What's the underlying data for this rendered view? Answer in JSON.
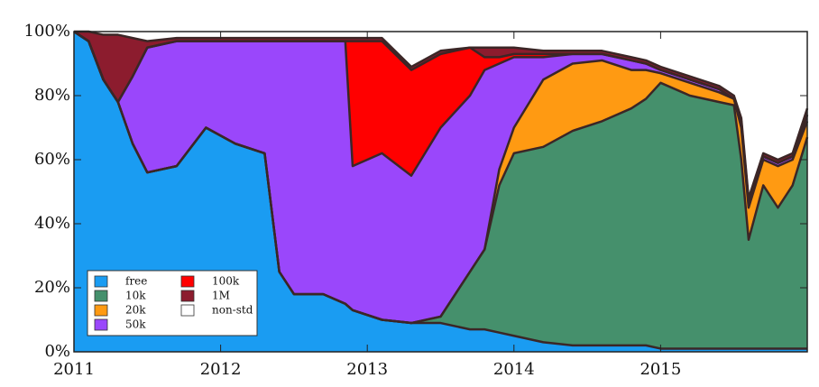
{
  "chart_data": {
    "type": "stacked_area",
    "x": [
      2011.0,
      2011.1,
      2011.2,
      2011.3,
      2011.4,
      2011.5,
      2011.7,
      2011.9,
      2012.1,
      2012.3,
      2012.4,
      2012.5,
      2012.7,
      2012.85,
      2012.9,
      2013.1,
      2013.3,
      2013.5,
      2013.7,
      2013.8,
      2013.9,
      2014.0,
      2014.2,
      2014.4,
      2014.6,
      2014.8,
      2014.9,
      2015.0,
      2015.2,
      2015.4,
      2015.5,
      2015.55,
      2015.6,
      2015.7,
      2015.8,
      2015.9,
      2016.0
    ],
    "series": [
      {
        "name": "free",
        "color": "#1a9cf2",
        "values": [
          100,
          97,
          85,
          78,
          65,
          56,
          58,
          70,
          65,
          62,
          25,
          18,
          18,
          15,
          13,
          10,
          9,
          9,
          7,
          7,
          6,
          5,
          3,
          2,
          2,
          2,
          2,
          1,
          1,
          1,
          1,
          1,
          1,
          1,
          1,
          1,
          1
        ]
      },
      {
        "name": "10k",
        "color": "#45906c",
        "values": [
          0,
          0,
          0,
          0,
          0,
          0,
          0,
          0,
          0,
          0,
          0,
          0,
          0,
          0,
          0,
          0,
          0,
          2,
          18,
          25,
          46,
          57,
          61,
          67,
          70,
          74,
          77,
          83,
          79,
          77,
          76,
          59,
          34,
          51,
          44,
          51,
          66
        ]
      },
      {
        "name": "20k",
        "color": "#ff9a12",
        "values": [
          0,
          0,
          0,
          0,
          0,
          0,
          0,
          0,
          0,
          0,
          0,
          0,
          0,
          0,
          0,
          0,
          0,
          0,
          0,
          0,
          5,
          8,
          21,
          21,
          19,
          12,
          9,
          3,
          4,
          3,
          2,
          10,
          10,
          8,
          13,
          8,
          5
        ]
      },
      {
        "name": "50k",
        "color": "#9a47fb",
        "values": [
          0,
          0,
          0,
          0,
          21,
          39,
          39,
          27,
          32,
          35,
          72,
          79,
          79,
          82,
          45,
          52,
          46,
          59,
          55,
          56,
          33,
          22,
          7,
          3,
          2,
          3,
          2,
          1,
          1,
          1,
          0,
          2,
          2,
          1,
          1,
          1,
          2
        ]
      },
      {
        "name": "100k",
        "color": "#ff0000",
        "values": [
          0,
          0,
          0,
          0,
          0,
          0,
          0,
          0,
          0,
          0,
          0,
          0,
          0,
          0,
          39,
          35,
          33,
          23,
          15,
          4,
          2,
          1,
          1,
          0,
          0,
          0,
          0,
          0,
          0,
          0,
          0,
          0,
          0,
          0,
          0,
          0,
          0
        ]
      },
      {
        "name": "1M",
        "color": "#8c1c2e",
        "values": [
          0,
          3,
          14,
          21,
          12,
          2,
          1,
          1,
          1,
          1,
          1,
          1,
          1,
          1,
          1,
          1,
          1,
          1,
          0,
          3,
          3,
          2,
          1,
          1,
          1,
          1,
          1,
          1,
          1,
          1,
          1,
          1,
          1,
          1,
          1,
          1,
          2
        ]
      },
      {
        "name": "non-std",
        "color": "#ffffff",
        "values": [
          0,
          0,
          1,
          1,
          2,
          3,
          2,
          2,
          2,
          2,
          2,
          2,
          2,
          2,
          2,
          2,
          11,
          6,
          5,
          5,
          5,
          5,
          6,
          6,
          6,
          8,
          9,
          11,
          14,
          17,
          20,
          27,
          52,
          38,
          40,
          38,
          24
        ]
      }
    ],
    "xlim": [
      2011,
      2016
    ],
    "xticks": [
      2011,
      2012,
      2013,
      2014,
      2015
    ],
    "ylim": [
      0,
      100
    ],
    "yticks": [
      {
        "value": 0,
        "label": "0%"
      },
      {
        "value": 20,
        "label": "20%"
      },
      {
        "value": 40,
        "label": "40%"
      },
      {
        "value": 60,
        "label": "60%"
      },
      {
        "value": 80,
        "label": "80%"
      },
      {
        "value": 100,
        "label": "100%"
      }
    ],
    "grid": false,
    "legend": "lower left"
  }
}
